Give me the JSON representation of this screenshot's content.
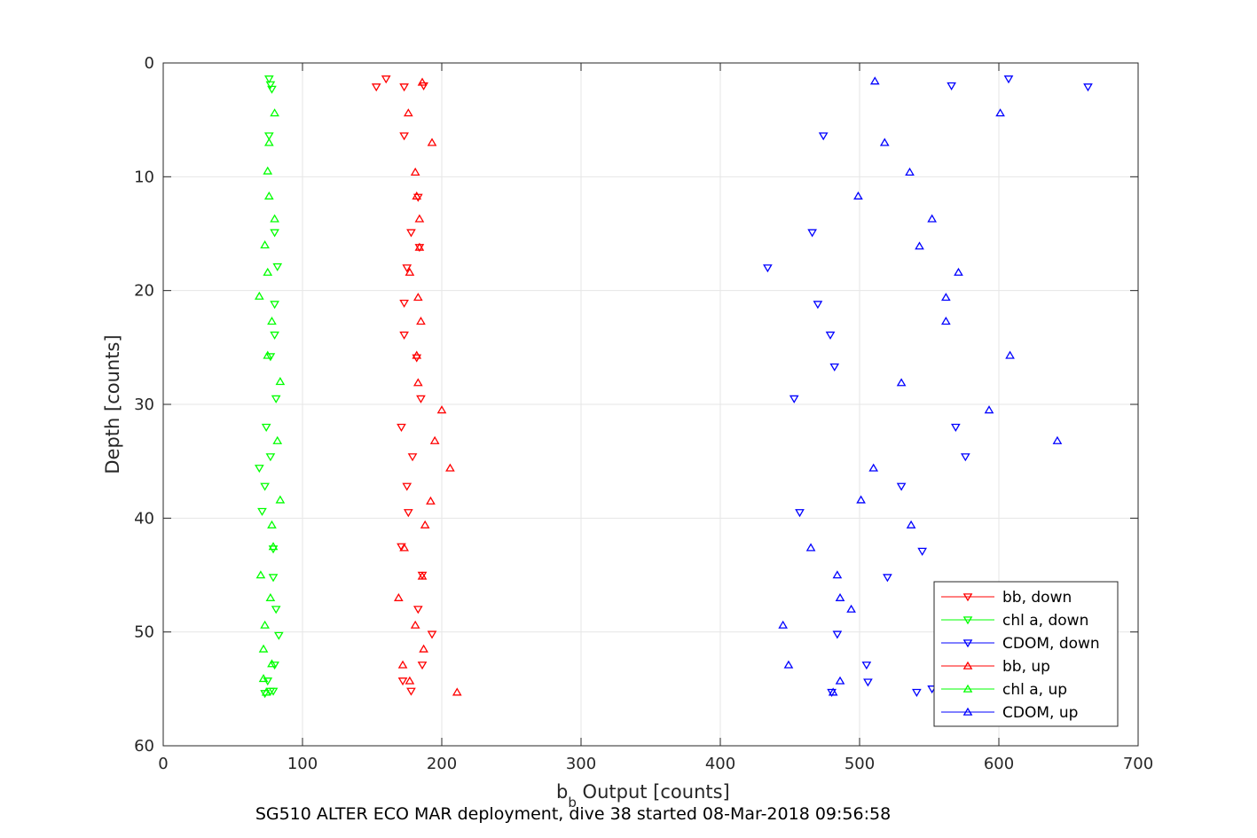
{
  "chart_data": {
    "type": "scatter",
    "title": "",
    "caption": "SG510 ALTER ECO MAR deployment, dive 38 started 08-Mar-2018 09:56:58",
    "xlabel_main": "b",
    "xlabel_sub": "b",
    "xlabel_rest": " Output [counts]",
    "ylabel": "Depth [counts]",
    "xlim": [
      0,
      700
    ],
    "ylim": [
      0,
      60
    ],
    "y_reversed": true,
    "grid": true,
    "legend_position": "bottom-right",
    "x_ticks": [
      "0",
      "100",
      "200",
      "300",
      "400",
      "500",
      "600",
      "700"
    ],
    "y_ticks": [
      "0",
      "10",
      "20",
      "30",
      "40",
      "50",
      "60"
    ],
    "colors": {
      "bb": "#ff0000",
      "chl": "#00ff00",
      "cdom": "#0000ff",
      "grid": "#e6e6e6",
      "axis": "#262626"
    },
    "series": [
      {
        "name": "bb, down",
        "marker": "triangle-down",
        "color": "#ff0000",
        "x": [
          160,
          153,
          173,
          173,
          187,
          183,
          178,
          184,
          175,
          173,
          173,
          182,
          185,
          171,
          179,
          175,
          176,
          171,
          186,
          183,
          193,
          186,
          172,
          178
        ],
        "y": [
          1.4,
          2.1,
          2.1,
          6.4,
          2.0,
          11.8,
          14.9,
          16.2,
          18.0,
          21.1,
          23.9,
          25.9,
          29.5,
          32.0,
          34.6,
          37.2,
          39.5,
          42.5,
          45.0,
          48.0,
          50.2,
          52.9,
          54.3,
          55.2
        ]
      },
      {
        "name": "chl a, down",
        "marker": "triangle-down",
        "color": "#00ff00",
        "x": [
          76,
          77,
          78,
          76,
          80,
          82,
          80,
          80,
          77,
          81,
          74,
          77,
          69,
          73,
          71,
          79,
          79,
          81,
          83,
          80,
          75,
          79,
          73,
          77
        ],
        "y": [
          1.4,
          1.9,
          2.3,
          6.4,
          14.9,
          17.9,
          21.2,
          23.9,
          25.8,
          29.5,
          32.0,
          34.6,
          35.6,
          37.2,
          39.4,
          42.7,
          45.2,
          48.0,
          50.3,
          52.9,
          54.3,
          55.2,
          55.4,
          55.2
        ]
      },
      {
        "name": "CDOM, down",
        "marker": "triangle-down",
        "color": "#0000ff",
        "x": [
          607,
          664,
          566,
          474,
          434,
          466,
          470,
          479,
          482,
          453,
          569,
          576,
          530,
          457,
          545,
          520,
          484,
          505,
          506,
          480,
          541,
          552
        ],
        "y": [
          1.4,
          2.1,
          2.0,
          6.4,
          18.0,
          14.9,
          21.2,
          23.9,
          26.7,
          29.5,
          32.0,
          34.6,
          37.2,
          39.5,
          42.9,
          45.2,
          50.2,
          52.9,
          54.4,
          55.3,
          55.3,
          55.0
        ]
      },
      {
        "name": "bb, up",
        "marker": "triangle-up",
        "color": "#ff0000",
        "x": [
          186,
          176,
          193,
          181,
          182,
          184,
          184,
          177,
          183,
          185,
          182,
          183,
          200,
          195,
          206,
          192,
          188,
          173,
          186,
          169,
          181,
          187,
          172,
          177,
          211
        ],
        "y": [
          1.7,
          4.4,
          7.0,
          9.6,
          11.7,
          13.7,
          16.2,
          18.4,
          20.6,
          22.7,
          25.7,
          28.1,
          30.5,
          33.2,
          35.6,
          38.5,
          40.6,
          42.6,
          45.1,
          47.0,
          49.4,
          51.5,
          52.9,
          54.3,
          55.3
        ]
      },
      {
        "name": "chl a, up",
        "marker": "triangle-up",
        "color": "#00ff00",
        "x": [
          80,
          76,
          75,
          76,
          80,
          73,
          75,
          69,
          78,
          75,
          84,
          82,
          84,
          78,
          79,
          70,
          77,
          73,
          72,
          78,
          72,
          74
        ],
        "y": [
          4.4,
          7.0,
          9.5,
          11.7,
          13.7,
          16.0,
          18.4,
          20.5,
          22.7,
          25.7,
          28.0,
          33.2,
          38.4,
          40.6,
          42.5,
          45.0,
          47.0,
          49.4,
          51.5,
          52.8,
          54.1,
          55.3
        ]
      },
      {
        "name": "CDOM, up",
        "marker": "triangle-up",
        "color": "#0000ff",
        "x": [
          511,
          601,
          518,
          536,
          499,
          552,
          543,
          571,
          562,
          562,
          608,
          530,
          593,
          642,
          510,
          501,
          537,
          465,
          484,
          486,
          494,
          445,
          449,
          486,
          481
        ],
        "y": [
          1.6,
          4.4,
          7.0,
          9.6,
          11.7,
          13.7,
          16.1,
          18.4,
          20.6,
          22.7,
          25.7,
          28.1,
          30.5,
          33.2,
          35.6,
          38.4,
          40.6,
          42.6,
          45.0,
          47.0,
          48.0,
          49.4,
          52.9,
          54.3,
          55.3
        ]
      }
    ]
  }
}
